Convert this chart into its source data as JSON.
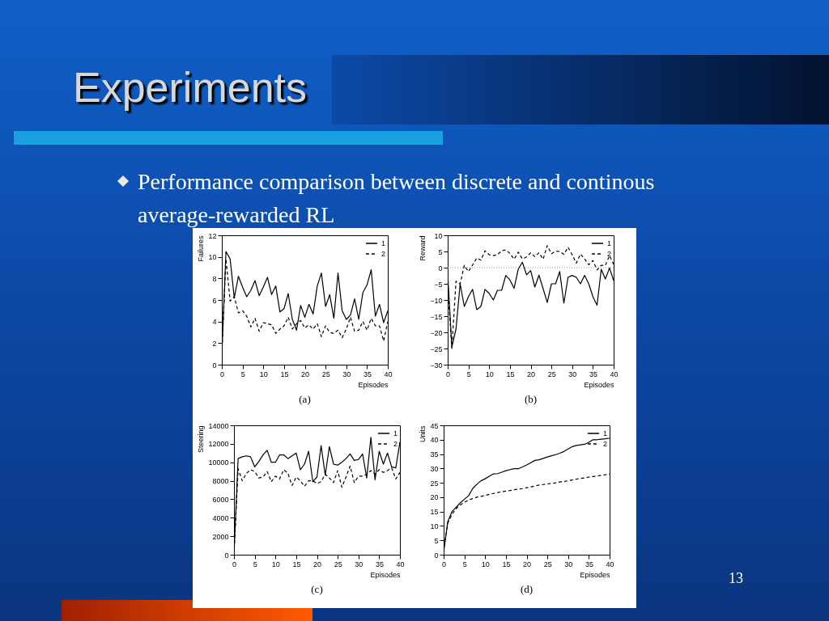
{
  "chart_data": [
    {
      "type": "line",
      "title": "Experiments",
      "subtitle": "Performance comparison between discrete and continous average-rewarded RL",
      "xlabel": "Episodes",
      "ylabel": "Failures",
      "annotations": [
        "(a)"
      ],
      "xlim": [
        0,
        40
      ],
      "xticks": [
        0,
        5,
        10,
        15,
        20,
        25,
        30,
        35,
        40
      ],
      "ylim": [
        0,
        12
      ],
      "yticks": [
        0,
        2,
        4,
        6,
        8,
        10,
        12
      ],
      "grid": false,
      "legend": "top right",
      "x": [
        0,
        1,
        2,
        3,
        4,
        5,
        6,
        7,
        8,
        9,
        10,
        11,
        12,
        13,
        14,
        15,
        16,
        17,
        18,
        19,
        20,
        21,
        22,
        23,
        24,
        25,
        26,
        27,
        28,
        29,
        30,
        31,
        32,
        33,
        34,
        35,
        36,
        37,
        38,
        39,
        40
      ],
      "series": [
        {
          "name": "1",
          "color": "#000000",
          "line_style": "solid",
          "values": [
            1,
            10.5,
            9.8,
            6.2,
            8.2,
            7.2,
            6.3,
            6.9,
            7.8,
            6.4,
            7.2,
            8.1,
            6.5,
            7.3,
            4.9,
            5.2,
            6.6,
            4.2,
            3.2,
            5.5,
            4.4,
            5.6,
            4.7,
            7.3,
            8.5,
            5.4,
            6.5,
            4.3,
            8.5,
            5.0,
            4.2,
            4.6,
            6.1,
            4.2,
            6.7,
            7.4,
            8.8,
            4.5,
            5.6,
            3.9,
            5.0
          ]
        },
        {
          "name": "2",
          "color": "#000000",
          "line_style": "dashed",
          "values": [
            1,
            9.8,
            5.9,
            6.3,
            4.8,
            5.0,
            4.5,
            3.5,
            4.3,
            3.1,
            3.9,
            3.8,
            3.7,
            2.9,
            3.3,
            3.6,
            4.4,
            3.3,
            3.8,
            4.1,
            3.4,
            3.7,
            3.3,
            3.8,
            2.6,
            3.6,
            3.0,
            2.9,
            3.2,
            2.5,
            3.3,
            4.4,
            3.1,
            3.2,
            4.0,
            3.2,
            4.3,
            3.6,
            3.6,
            2.2,
            4.0
          ]
        }
      ]
    },
    {
      "type": "line",
      "xlabel": "Episodes",
      "ylabel": "Reward",
      "annotations": [
        "(b)"
      ],
      "xlim": [
        0,
        40
      ],
      "xticks": [
        0,
        5,
        10,
        15,
        20,
        25,
        30,
        35,
        40
      ],
      "ylim": [
        -30,
        10
      ],
      "yticks": [
        -30,
        -25,
        -20,
        -15,
        -10,
        -5,
        0,
        5,
        10
      ],
      "grid": false,
      "legend": "top right",
      "ref_lines": [
        {
          "axis": "y",
          "value": 0,
          "color": "#999999",
          "line_style": "dotted"
        }
      ],
      "x": [
        0,
        1,
        2,
        3,
        4,
        5,
        6,
        7,
        8,
        9,
        10,
        11,
        12,
        13,
        14,
        15,
        16,
        17,
        18,
        19,
        20,
        21,
        22,
        23,
        24,
        25,
        26,
        27,
        28,
        29,
        30,
        31,
        32,
        33,
        34,
        35,
        36,
        37,
        38,
        39,
        40
      ],
      "series": [
        {
          "name": "1",
          "color": "#000000",
          "line_style": "solid",
          "values": [
            -2,
            -24.5,
            -19,
            -5,
            -12,
            -9,
            -6.7,
            -13,
            -12,
            -6.7,
            -8,
            -10,
            -7,
            -7,
            -2.4,
            -3.8,
            -6.4,
            -0.5,
            1.7,
            -2.2,
            -0.9,
            -6,
            -2.3,
            -6.5,
            -10.8,
            -5,
            -5,
            -1.2,
            -11,
            -3,
            -2.4,
            -3,
            -5,
            -2.4,
            -5,
            -9,
            -11.6,
            -0.5,
            -3.5,
            -0.1,
            -4
          ]
        },
        {
          "name": "2",
          "color": "#000000",
          "line_style": "dashed",
          "values": [
            -5,
            -25,
            -4.2,
            -5,
            0.7,
            -1.2,
            0.8,
            3,
            2.3,
            5.2,
            4,
            3.7,
            4,
            5.2,
            5.5,
            4.4,
            2.6,
            4.8,
            2.7,
            3.3,
            4.6,
            3.4,
            4.6,
            2.6,
            6.8,
            4.3,
            5.1,
            5,
            4.1,
            6.3,
            4,
            1.4,
            4.2,
            2.7,
            0.9,
            2.2,
            -0.7,
            0.7,
            0.7,
            3.7,
            1
          ]
        }
      ]
    },
    {
      "type": "line",
      "xlabel": "Episodes",
      "ylabel": "Steering",
      "annotations": [
        "(c)"
      ],
      "xlim": [
        0,
        40
      ],
      "xticks": [
        0,
        5,
        10,
        15,
        20,
        25,
        30,
        35,
        40
      ],
      "ylim": [
        0,
        14000
      ],
      "yticks": [
        0,
        2000,
        4000,
        6000,
        8000,
        10000,
        12000,
        14000
      ],
      "grid": false,
      "legend": "top right",
      "x": [
        0,
        1,
        2,
        3,
        4,
        5,
        6,
        7,
        8,
        9,
        10,
        11,
        12,
        13,
        14,
        15,
        16,
        17,
        18,
        19,
        20,
        21,
        22,
        23,
        24,
        25,
        26,
        27,
        28,
        29,
        30,
        31,
        32,
        33,
        34,
        35,
        36,
        37,
        38,
        39,
        40
      ],
      "series": [
        {
          "name": "1",
          "color": "#000000",
          "line_style": "solid",
          "values": [
            0,
            10400,
            10600,
            10700,
            10600,
            9500,
            10100,
            10800,
            11300,
            10000,
            10000,
            10800,
            10800,
            10400,
            10700,
            11000,
            9200,
            9800,
            11200,
            7900,
            8400,
            11800,
            8600,
            11700,
            9800,
            9700,
            10000,
            10400,
            10900,
            10200,
            10300,
            10900,
            8300,
            12700,
            8100,
            11200,
            9800,
            11000,
            9500,
            9400,
            12200
          ]
        },
        {
          "name": "2",
          "color": "#000000",
          "line_style": "dashed",
          "values": [
            0,
            9300,
            8000,
            8800,
            9200,
            9000,
            8300,
            8400,
            9000,
            7900,
            8500,
            8200,
            9200,
            8800,
            7500,
            8400,
            8000,
            7400,
            8000,
            8000,
            7700,
            7900,
            8700,
            8300,
            7800,
            9100,
            7300,
            8400,
            9600,
            7800,
            8500,
            8500,
            8700,
            9100,
            8700,
            9200,
            8900,
            9100,
            9400,
            8200,
            8900
          ]
        }
      ]
    },
    {
      "type": "line",
      "xlabel": "Episodes",
      "ylabel": "Units",
      "annotations": [
        "(d)",
        "13"
      ],
      "xlim": [
        0,
        40
      ],
      "xticks": [
        0,
        5,
        10,
        15,
        20,
        25,
        30,
        35,
        40
      ],
      "ylim": [
        0,
        45
      ],
      "yticks": [
        0,
        5,
        10,
        15,
        20,
        25,
        30,
        35,
        40,
        45
      ],
      "grid": false,
      "legend": "top right",
      "x": [
        0,
        1,
        2,
        3,
        4,
        5,
        6,
        7,
        8,
        9,
        10,
        11,
        12,
        13,
        14,
        15,
        16,
        17,
        18,
        19,
        20,
        21,
        22,
        23,
        24,
        25,
        26,
        27,
        28,
        29,
        30,
        31,
        32,
        33,
        34,
        35,
        36,
        37,
        38,
        39,
        40
      ],
      "series": [
        {
          "name": "1",
          "color": "#000000",
          "line_style": "solid",
          "values": [
            1,
            11.5,
            15,
            16.5,
            18,
            19.3,
            20.5,
            23,
            24.5,
            25.7,
            26.4,
            27.3,
            28.1,
            28.2,
            28.7,
            29.2,
            29.6,
            29.9,
            29.9,
            30.5,
            31.2,
            32,
            32.8,
            33,
            33.5,
            34,
            34.4,
            34.8,
            35.3,
            35.9,
            36.8,
            37.6,
            38,
            38.2,
            38.4,
            39.1,
            40,
            40,
            40.2,
            40.3,
            40.5
          ]
        },
        {
          "name": "2",
          "color": "#000000",
          "line_style": "dashed",
          "values": [
            1,
            11,
            14,
            16,
            17.3,
            18.2,
            19,
            19.5,
            20,
            20.3,
            20.6,
            21,
            21.3,
            21.6,
            21.9,
            22.1,
            22.3,
            22.6,
            22.8,
            23,
            23.3,
            23.6,
            23.9,
            24.2,
            24.4,
            24.6,
            24.8,
            25,
            25.3,
            25.5,
            25.7,
            26,
            26.3,
            26.5,
            26.7,
            27,
            27.2,
            27.4,
            27.6,
            27.8,
            28
          ]
        }
      ]
    }
  ]
}
